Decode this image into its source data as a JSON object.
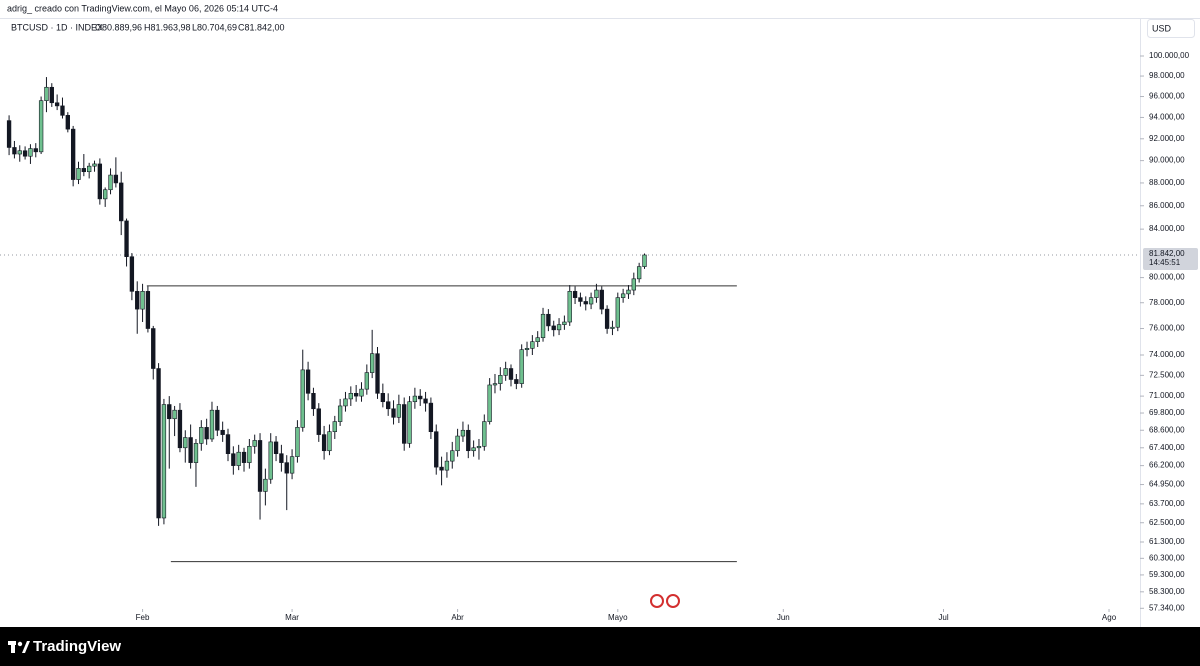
{
  "header": {
    "credit": "adrig_ creado con TradingView.com, el Mayo 06, 2026 05:14 UTC-4",
    "symbol": "BTCUSD · 1D · INDEX",
    "ohlc": [
      "O80.889,96",
      "H81.963,98",
      "L80.704,69",
      "C81.842,00"
    ],
    "currency": "USD"
  },
  "chart_data": {
    "type": "candlestick",
    "log_scale": true,
    "up_color": "#6fc08f",
    "down_color": "#131722",
    "candles": [
      [
        93700,
        94200,
        90500,
        91200
      ],
      [
        91200,
        91800,
        90200,
        90600
      ],
      [
        90600,
        91400,
        89900,
        90900
      ],
      [
        90900,
        91300,
        90100,
        90400
      ],
      [
        90400,
        91500,
        89700,
        91100
      ],
      [
        91100,
        91600,
        90300,
        90800
      ],
      [
        90800,
        96000,
        90600,
        95600
      ],
      [
        95600,
        97900,
        94500,
        96900
      ],
      [
        96900,
        97300,
        95000,
        95400
      ],
      [
        95400,
        96200,
        94700,
        95100
      ],
      [
        95100,
        95900,
        93900,
        94200
      ],
      [
        94200,
        94500,
        92600,
        92900
      ],
      [
        92900,
        93200,
        87700,
        88300
      ],
      [
        88300,
        89900,
        87900,
        89300
      ],
      [
        89300,
        90600,
        88600,
        89000
      ],
      [
        89000,
        89800,
        88400,
        89500
      ],
      [
        89500,
        90000,
        89000,
        89700
      ],
      [
        89700,
        90200,
        86100,
        86600
      ],
      [
        86600,
        87600,
        85900,
        87400
      ],
      [
        87400,
        89300,
        87000,
        88700
      ],
      [
        88700,
        90300,
        87600,
        88000
      ],
      [
        88000,
        89000,
        83500,
        84700
      ],
      [
        84700,
        84900,
        80900,
        81700
      ],
      [
        81700,
        82000,
        78200,
        78900
      ],
      [
        78900,
        79700,
        75600,
        77500
      ],
      [
        77500,
        79500,
        76500,
        78900
      ],
      [
        78900,
        79300,
        75700,
        76000
      ],
      [
        76000,
        76200,
        72200,
        73000
      ],
      [
        73000,
        73400,
        62300,
        62800
      ],
      [
        62800,
        70800,
        62400,
        70400
      ],
      [
        70400,
        71000,
        66000,
        69400
      ],
      [
        69400,
        70300,
        68200,
        70000
      ],
      [
        70000,
        70500,
        67100,
        67400
      ],
      [
        67400,
        68600,
        66400,
        68100
      ],
      [
        68100,
        69000,
        66000,
        66400
      ],
      [
        66400,
        68000,
        64800,
        67700
      ],
      [
        67700,
        69300,
        67200,
        68800
      ],
      [
        68800,
        69400,
        67600,
        68000
      ],
      [
        68000,
        70600,
        67800,
        70000
      ],
      [
        70000,
        70300,
        68200,
        68600
      ],
      [
        68600,
        69200,
        67800,
        68300
      ],
      [
        68300,
        68700,
        66500,
        67000
      ],
      [
        67000,
        67500,
        65600,
        66200
      ],
      [
        66200,
        67600,
        65900,
        67100
      ],
      [
        67100,
        67400,
        65800,
        66400
      ],
      [
        66400,
        68000,
        66000,
        67500
      ],
      [
        67500,
        68300,
        67000,
        67900
      ],
      [
        67900,
        68400,
        62700,
        64500
      ],
      [
        64500,
        66000,
        63600,
        65300
      ],
      [
        65300,
        68400,
        65000,
        67800
      ],
      [
        67800,
        68200,
        66500,
        67000
      ],
      [
        67000,
        67600,
        65800,
        66400
      ],
      [
        66400,
        66900,
        63300,
        65700
      ],
      [
        65700,
        67300,
        65300,
        66800
      ],
      [
        66800,
        69300,
        66400,
        68800
      ],
      [
        68800,
        74400,
        68500,
        72900
      ],
      [
        72900,
        73500,
        70700,
        71200
      ],
      [
        71200,
        71600,
        69600,
        70100
      ],
      [
        70100,
        70500,
        67800,
        68300
      ],
      [
        68300,
        68900,
        66600,
        67200
      ],
      [
        67200,
        69000,
        66900,
        68500
      ],
      [
        68500,
        69600,
        68000,
        69200
      ],
      [
        69200,
        70800,
        68900,
        70300
      ],
      [
        70300,
        71300,
        69900,
        70800
      ],
      [
        70800,
        71700,
        70300,
        71200
      ],
      [
        71200,
        71800,
        70600,
        71000
      ],
      [
        71000,
        72000,
        70600,
        71500
      ],
      [
        71500,
        73300,
        71100,
        72700
      ],
      [
        72700,
        75900,
        72300,
        74100
      ],
      [
        74100,
        74600,
        70800,
        71200
      ],
      [
        71200,
        71900,
        70200,
        70600
      ],
      [
        70600,
        71200,
        69600,
        70100
      ],
      [
        70100,
        70700,
        69000,
        69500
      ],
      [
        69500,
        71100,
        69100,
        70400
      ],
      [
        70400,
        70900,
        67200,
        67700
      ],
      [
        67700,
        71000,
        67400,
        70600
      ],
      [
        70600,
        71600,
        70100,
        71000
      ],
      [
        71000,
        71500,
        70300,
        70800
      ],
      [
        70800,
        71300,
        69900,
        70500
      ],
      [
        70500,
        70900,
        68000,
        68500
      ],
      [
        68500,
        69000,
        65600,
        66100
      ],
      [
        66100,
        66800,
        64900,
        65900
      ],
      [
        65900,
        67100,
        65400,
        66500
      ],
      [
        66500,
        67800,
        66000,
        67200
      ],
      [
        67200,
        68700,
        66800,
        68200
      ],
      [
        68200,
        69200,
        67800,
        68600
      ],
      [
        68600,
        69000,
        66700,
        67200
      ],
      [
        67200,
        67900,
        66800,
        67400
      ],
      [
        67400,
        68000,
        66600,
        67500
      ],
      [
        67500,
        69700,
        67200,
        69200
      ],
      [
        69200,
        72300,
        69000,
        71800
      ],
      [
        71800,
        72600,
        71200,
        71900
      ],
      [
        71900,
        73100,
        71400,
        72500
      ],
      [
        72500,
        73500,
        72100,
        73000
      ],
      [
        73000,
        73300,
        71700,
        72200
      ],
      [
        72200,
        72600,
        71500,
        71900
      ],
      [
        71900,
        74800,
        71600,
        74400
      ],
      [
        74400,
        75000,
        73900,
        74500
      ],
      [
        74500,
        75500,
        74000,
        75000
      ],
      [
        75000,
        75800,
        74600,
        75300
      ],
      [
        75300,
        77600,
        75000,
        77100
      ],
      [
        77100,
        77500,
        75800,
        76200
      ],
      [
        76200,
        76600,
        75400,
        75900
      ],
      [
        75900,
        76800,
        75500,
        76300
      ],
      [
        76300,
        77000,
        75900,
        76500
      ],
      [
        76500,
        79400,
        76200,
        78900
      ],
      [
        78900,
        79300,
        77900,
        78400
      ],
      [
        78400,
        78800,
        77700,
        78100
      ],
      [
        78100,
        78500,
        77400,
        77900
      ],
      [
        77900,
        78800,
        77500,
        78400
      ],
      [
        78400,
        79500,
        78000,
        79000
      ],
      [
        79000,
        79300,
        77100,
        77500
      ],
      [
        77500,
        77800,
        75600,
        76000
      ],
      [
        76000,
        76600,
        75500,
        76100
      ],
      [
        76100,
        78800,
        75800,
        78400
      ],
      [
        78400,
        79100,
        78000,
        78700
      ],
      [
        78700,
        79400,
        78300,
        79000
      ],
      [
        79000,
        80400,
        78600,
        79900
      ],
      [
        79900,
        81200,
        79600,
        80890
      ],
      [
        80889.96,
        81963.98,
        80704.69,
        81842
      ]
    ],
    "xlim": [
      -1.7,
      211.8
    ],
    "xticks": [
      {
        "value": 25,
        "label": "Feb"
      },
      {
        "value": 53,
        "label": "Mar"
      },
      {
        "value": 84,
        "label": "Abr"
      },
      {
        "value": 114,
        "label": "Mayo"
      },
      {
        "value": 145,
        "label": "Jun"
      },
      {
        "value": 175,
        "label": "Jul"
      },
      {
        "value": 206,
        "label": "Ago"
      }
    ],
    "ylim": [
      57300,
      103900
    ],
    "yticks": [
      {
        "value": 100000,
        "label": "100.000,00"
      },
      {
        "value": 98000,
        "label": "98.000,00"
      },
      {
        "value": 96000,
        "label": "96.000,00"
      },
      {
        "value": 94000,
        "label": "94.000,00"
      },
      {
        "value": 92000,
        "label": "92.000,00"
      },
      {
        "value": 90000,
        "label": "90.000,00"
      },
      {
        "value": 88000,
        "label": "88.000,00"
      },
      {
        "value": 86000,
        "label": "86.000,00"
      },
      {
        "value": 84000,
        "label": "84.000,00"
      },
      {
        "value": 80000,
        "label": "80.000,00"
      },
      {
        "value": 78000,
        "label": "78.000,00"
      },
      {
        "value": 76000,
        "label": "76.000,00"
      },
      {
        "value": 74000,
        "label": "74.000,00"
      },
      {
        "value": 72500,
        "label": "72.500,00"
      },
      {
        "value": 71000,
        "label": "71.000,00"
      },
      {
        "value": 69800,
        "label": "69.800,00"
      },
      {
        "value": 68600,
        "label": "68.600,00"
      },
      {
        "value": 67400,
        "label": "67.400,00"
      },
      {
        "value": 66200,
        "label": "66.200,00"
      },
      {
        "value": 64950,
        "label": "64.950,00"
      },
      {
        "value": 63700,
        "label": "63.700,00"
      },
      {
        "value": 62500,
        "label": "62.500,00"
      },
      {
        "value": 61300,
        "label": "61.300,00"
      },
      {
        "value": 60300,
        "label": "60.300,00"
      },
      {
        "value": 59300,
        "label": "59.300,00"
      },
      {
        "value": 58300,
        "label": "58.300,00"
      },
      {
        "value": 57340,
        "label": "57.340,00"
      }
    ],
    "last_price": {
      "value": 81842,
      "label": "81.842,00",
      "countdown": "14:45:51"
    },
    "levels": [
      {
        "value": 79340,
        "from": 25.8,
        "to": 136.3
      },
      {
        "value": 60100,
        "from": 30.3,
        "to": 136.3
      }
    ]
  },
  "footer": {
    "brand": "TradingView"
  }
}
